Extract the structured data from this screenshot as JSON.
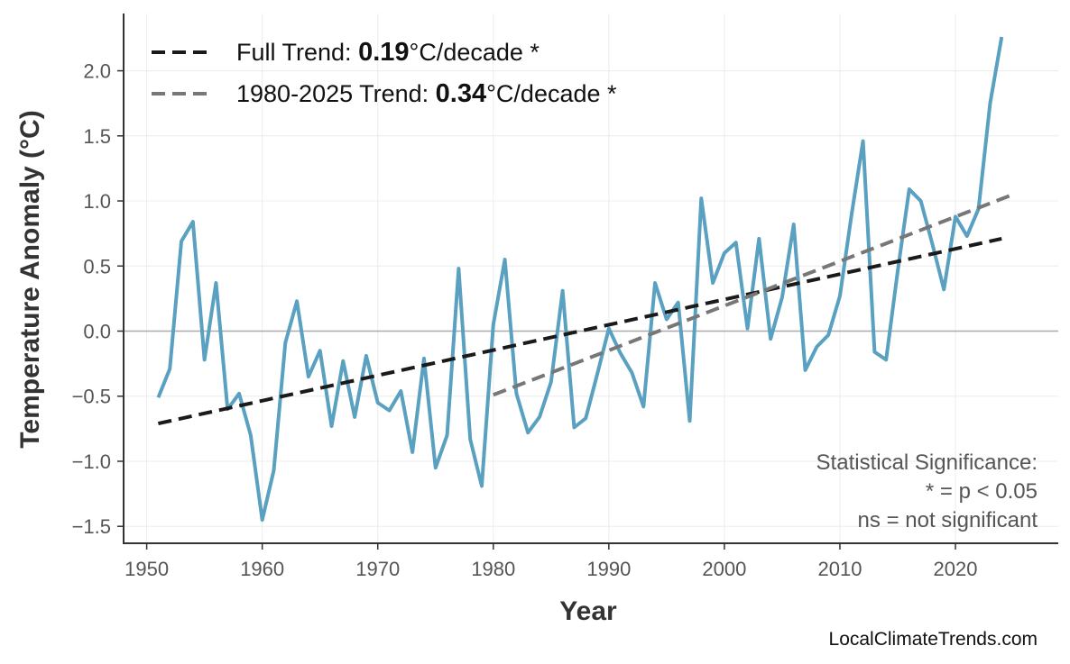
{
  "chart_data": {
    "type": "line",
    "title": "",
    "xlabel": "Year",
    "ylabel": "Temperature Anomaly (°C)",
    "xlim": [
      1948,
      2028.9
    ],
    "ylim": [
      -1.63,
      2.44
    ],
    "grid": true,
    "legend_position": "top-left",
    "x_ticks": [
      "1950",
      "1960",
      "1970",
      "1980",
      "1990",
      "2000",
      "2010",
      "2020"
    ],
    "y_ticks": [
      "−1.5",
      "−1.0",
      "−0.5",
      "0.0",
      "0.5",
      "1.0",
      "1.5",
      "2.0"
    ],
    "series": [
      {
        "color": "#5aa0c0",
        "x": [
          1951,
          1952,
          1953,
          1954,
          1955,
          1956,
          1957,
          1958,
          1959,
          1960,
          1961,
          1962,
          1963,
          1964,
          1965,
          1966,
          1967,
          1968,
          1969,
          1970,
          1971,
          1972,
          1973,
          1974,
          1975,
          1976,
          1977,
          1978,
          1979,
          1980,
          1981,
          1982,
          1983,
          1984,
          1985,
          1986,
          1987,
          1988,
          1989,
          1990,
          1991,
          1992,
          1993,
          1994,
          1995,
          1996,
          1997,
          1998,
          1999,
          2000,
          2001,
          2002,
          2003,
          2004,
          2005,
          2006,
          2007,
          2008,
          2009,
          2010,
          2011,
          2012,
          2013,
          2014,
          2015,
          2016,
          2017,
          2018,
          2019,
          2020,
          2021,
          2022,
          2023,
          2024
        ],
        "y": [
          -0.51,
          -0.29,
          0.69,
          0.84,
          -0.22,
          0.37,
          -0.6,
          -0.48,
          -0.8,
          -1.45,
          -1.07,
          -0.09,
          0.23,
          -0.35,
          -0.15,
          -0.73,
          -0.23,
          -0.66,
          -0.19,
          -0.55,
          -0.61,
          -0.46,
          -0.93,
          -0.21,
          -1.05,
          -0.8,
          0.48,
          -0.83,
          -1.19,
          0.05,
          0.55,
          -0.48,
          -0.78,
          -0.66,
          -0.39,
          0.31,
          -0.74,
          -0.67,
          -0.33,
          0.02,
          -0.17,
          -0.32,
          -0.58,
          0.37,
          0.09,
          0.22,
          -0.69,
          1.02,
          0.37,
          0.6,
          0.68,
          0.02,
          0.71,
          -0.06,
          0.26,
          0.82,
          -0.3,
          -0.12,
          -0.03,
          0.27,
          0.89,
          1.46,
          -0.16,
          -0.22,
          0.46,
          1.09,
          1.0,
          0.67,
          0.32,
          0.88,
          0.73,
          0.94,
          1.75,
          2.26
        ]
      }
    ],
    "trends": [
      {
        "label_prefix": "Full Trend: ",
        "value": "0.19",
        "label_suffix": "°C/decade *",
        "color": "#1a1a1a",
        "x": [
          1951,
          2024
        ],
        "y": [
          -0.71,
          0.71
        ]
      },
      {
        "label_prefix": "1980-2025 Trend: ",
        "value": "0.34",
        "label_suffix": "°C/decade *",
        "color": "#777777",
        "x": [
          1980,
          2025
        ],
        "y": [
          -0.49,
          1.05
        ]
      }
    ],
    "annotation": [
      "Statistical Significance:",
      "* = p < 0.05",
      "ns = not significant"
    ],
    "credit": "LocalClimateTrends.com"
  }
}
